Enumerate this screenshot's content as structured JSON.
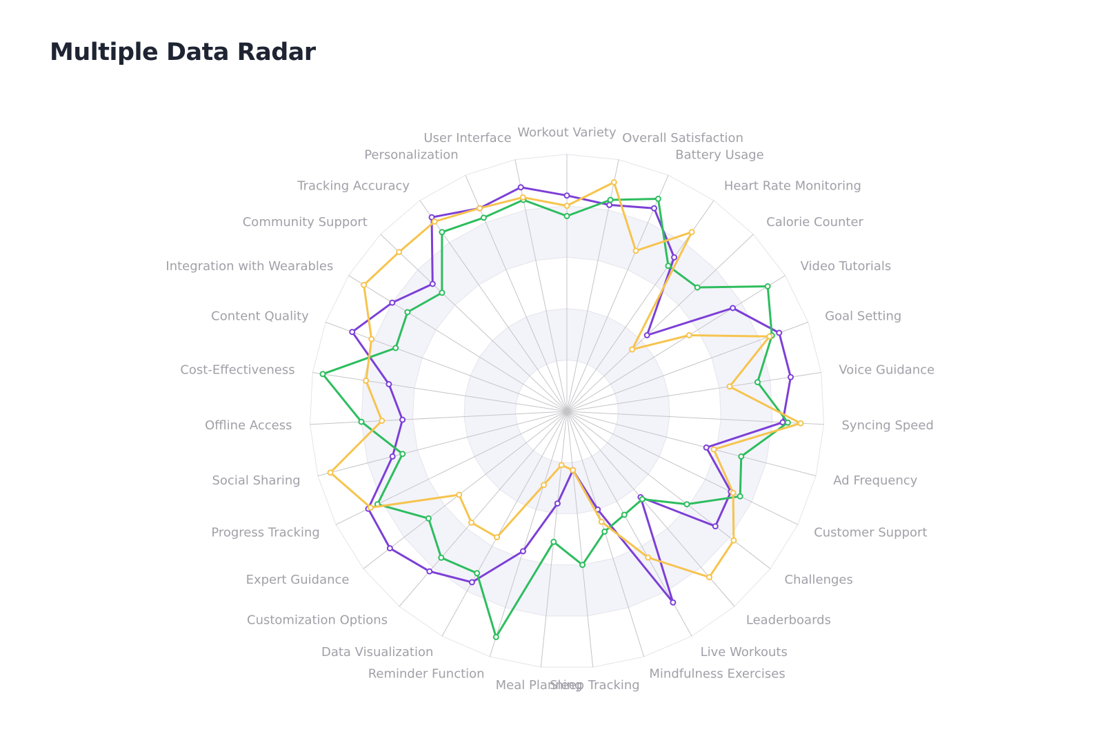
{
  "title": "Multiple Data Radar",
  "chart_data": {
    "type": "radar",
    "title": "Multiple Data Radar",
    "max": 100,
    "grid": true,
    "legend": "none",
    "indicators": [
      "Workout Variety",
      "Overall Satisfaction",
      "Battery Usage",
      "Heart Rate Monitoring",
      "Calorie Counter",
      "Video Tutorials",
      "Goal Setting",
      "Voice Guidance",
      "Syncing Speed",
      "Ad Frequency",
      "Customer Support",
      "Challenges",
      "Leaderboards",
      "Live Workouts",
      "Mindfulness Exercises",
      "Sleep Tracking",
      "Meal Planning",
      "Reminder Function",
      "Data Visualization",
      "Customization Options",
      "Expert Guidance",
      "Progress Tracking",
      "Social Sharing",
      "Offline Access",
      "Cost-Effectiveness",
      "Content Quality",
      "Integration with Wearables",
      "Community Support",
      "Tracking Accuracy",
      "Personalization",
      "User Interface"
    ],
    "series": [
      {
        "color": "#7c3fd6",
        "values": [
          84,
          82,
          86,
          73,
          43,
          76,
          88,
          88,
          84,
          56,
          71,
          73,
          44,
          85,
          40,
          23,
          36,
          57,
          76,
          82,
          87,
          86,
          70,
          64,
          70,
          89,
          80,
          72,
          92,
          86,
          89
        ]
      },
      {
        "color": "#2dbd5e",
        "values": [
          76,
          84,
          90,
          69,
          70,
          92,
          85,
          75,
          86,
          70,
          75,
          59,
          45,
          46,
          49,
          60,
          51,
          92,
          72,
          75,
          68,
          82,
          66,
          80,
          96,
          71,
          73,
          67,
          85,
          82,
          84
        ]
      },
      {
        "color": "#f6c44e",
        "values": [
          80,
          91,
          68,
          85,
          35,
          56,
          84,
          64,
          91,
          59,
          72,
          82,
          85,
          65,
          45,
          23,
          21,
          30,
          56,
          57,
          53,
          85,
          95,
          72,
          79,
          81,
          93,
          90,
          90,
          86,
          85
        ]
      }
    ]
  }
}
